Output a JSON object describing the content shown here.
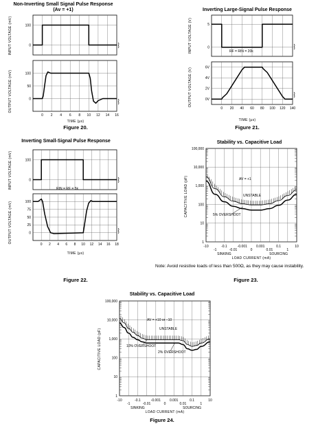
{
  "chart_data": [
    {
      "id": "fig20",
      "type": "line",
      "title": "Non-Inverting Small Signal Pulse Response",
      "subtitle": "(Av = +1)",
      "caption": "Figure 20.",
      "xlabel": "TIME (μs)",
      "ylabel_top": "INPUT VOLTAGE (mV)",
      "ylabel_bottom": "OUTPUT VOLTAGE (mV)",
      "xlim": [
        -2,
        16
      ],
      "xticks": [
        "0",
        "2",
        "4",
        "6",
        "8",
        "10",
        "12",
        "14",
        "16"
      ],
      "top_ylim": [
        -50,
        150
      ],
      "top_yticks": [
        "100",
        "0"
      ],
      "bottom_ylim": [
        -50,
        150
      ],
      "bottom_yticks": [
        "100",
        "50",
        "0"
      ],
      "series": [
        {
          "x": [
            -2,
            0,
            0,
            10,
            10,
            16
          ],
          "y": [
            0,
            0,
            100,
            100,
            0,
            0
          ]
        },
        {
          "x": [
            -2,
            0,
            0.2,
            0.5,
            0.8,
            1.2,
            1.8,
            2.5,
            10,
            10.3,
            10.6,
            11,
            11.5,
            12,
            13,
            16
          ],
          "y": [
            0,
            0,
            10,
            50,
            90,
            105,
            100,
            100,
            100,
            80,
            30,
            -10,
            -18,
            -8,
            0,
            0
          ]
        }
      ]
    },
    {
      "id": "fig21",
      "type": "line",
      "title": "Inverting Large-Signal Pulse Response",
      "caption": "Figure 21.",
      "xlabel": "TIME (μs)",
      "ylabel_top": "INPUT VOLTAGE (V)",
      "ylabel_bottom": "OUTPUT VOLTAGE (V)",
      "annotation": "RF = RIN = 20k",
      "xlim": [
        -20,
        140
      ],
      "xticks": [
        "0",
        "20",
        "40",
        "60",
        "80",
        "100",
        "120",
        "140"
      ],
      "top_ylim": [
        -2,
        7
      ],
      "top_yticks": [
        "5",
        "0"
      ],
      "bottom_ylim": [
        -1,
        7
      ],
      "bottom_yticks": [
        "6V",
        "4V",
        "2V",
        "0V"
      ],
      "series": [
        {
          "x": [
            -20,
            0,
            0,
            80,
            80,
            140
          ],
          "y": [
            5,
            5,
            0,
            0,
            5,
            5
          ]
        },
        {
          "x": [
            -20,
            0,
            2,
            10,
            40,
            45,
            75,
            80,
            82,
            90,
            120,
            125,
            140
          ],
          "y": [
            0,
            0,
            0.3,
            1,
            5.5,
            6,
            6,
            6,
            5.7,
            5,
            0.5,
            0,
            0
          ]
        }
      ]
    },
    {
      "id": "fig22",
      "type": "line",
      "title": "Inverting Small-Signal Pulse Response",
      "caption": "Figure 22.",
      "xlabel": "TIME (μs)",
      "ylabel_top": "INPUT VOLTAGE (mV)",
      "ylabel_bottom": "OUTPUT VOLTAGE (mV)",
      "annotation": "RIN = RF = 5k",
      "xlim": [
        -2,
        18
      ],
      "xticks": [
        "0",
        "2",
        "4",
        "6",
        "8",
        "10",
        "12",
        "14",
        "16",
        "18"
      ],
      "top_ylim": [
        -50,
        150
      ],
      "top_yticks": [
        "100",
        "0"
      ],
      "bottom_ylim": [
        -25,
        125
      ],
      "bottom_yticks": [
        "100",
        "75",
        "50",
        "25",
        "0"
      ],
      "series": [
        {
          "x": [
            -2,
            0,
            0,
            10,
            10,
            18
          ],
          "y": [
            0,
            0,
            100,
            100,
            0,
            0
          ]
        },
        {
          "x": [
            -2,
            -0.8,
            0,
            0.3,
            0.8,
            1.5,
            2.2,
            3,
            10,
            10.3,
            10.8,
            11.3,
            11.8,
            12.3,
            18
          ],
          "y": [
            100,
            100,
            108,
            100,
            60,
            20,
            0,
            -3,
            0,
            25,
            70,
            95,
            103,
            100,
            100
          ]
        }
      ]
    },
    {
      "id": "fig23",
      "type": "line",
      "title": "Stability vs. Capacitive Load",
      "caption": "Figure 23.",
      "xlabel": "LOAD CURRENT (mA)",
      "ylabel": "CAPACITIVE LOAD (pF)",
      "sinking_label": "SINKING",
      "sourcing_label": "SOURCING",
      "xticks_major": [
        "-10",
        "-0.1",
        "-0.001",
        "0.001",
        "0.1",
        "10"
      ],
      "xticks_minor": [
        "-1",
        "-0.01",
        "0",
        "0.01",
        "1"
      ],
      "yticks": [
        "100,000",
        "10,000",
        "1,000",
        "100",
        "10",
        "1"
      ],
      "ylim": [
        1,
        100000
      ],
      "yscale": "log",
      "gain_label": "AV = +1",
      "unstable_label": "UNSTABLE",
      "overshoot_label": "5% OVERSHOOT",
      "series": [
        {
          "x": [
            0,
            1,
            2,
            3,
            4,
            5,
            6,
            7,
            8,
            9,
            10
          ],
          "y": [
            3000,
            700,
            260,
            150,
            110,
            95,
            95,
            110,
            160,
            300,
            600
          ]
        },
        {
          "x": [
            0,
            1,
            2,
            3,
            4,
            5,
            6,
            7,
            8,
            9,
            10
          ],
          "y": [
            1800,
            350,
            140,
            80,
            60,
            50,
            50,
            60,
            90,
            170,
            350
          ]
        }
      ],
      "note": "Note: Avoid resistive loads of less than 500Ω, as they may cause instability."
    },
    {
      "id": "fig24",
      "type": "line",
      "title": "Stability vs. Capacitive Load",
      "caption": "Figure 24.",
      "xlabel": "LOAD CURRENT (mA)",
      "ylabel": "CAPACITIVE LOAD (pF)",
      "sinking_label": "SINKING",
      "sourcing_label": "SOURCING",
      "xticks_major": [
        "-10",
        "-0.1",
        "-0.001",
        "0.001",
        "0.1",
        "10"
      ],
      "xticks_minor": [
        "-1",
        "-0.01",
        "0",
        "0.01",
        "1"
      ],
      "yticks": [
        "100,000",
        "10,000",
        "1,000",
        "100",
        "10",
        "1"
      ],
      "ylim": [
        1,
        100000
      ],
      "yscale": "log",
      "gain_label": "AV = +10 or −10",
      "unstable_label": "UNSTABLE",
      "overshoot_label_a": "10% OVERSHOOT",
      "overshoot_label_b": "2% OVERSHOOT",
      "series": [
        {
          "x": [
            0,
            0.5,
            1,
            1.5,
            2,
            2.5,
            3,
            5,
            6.5,
            7,
            7.5,
            8,
            8.5,
            9,
            10
          ],
          "y": [
            12000,
            7000,
            3500,
            2200,
            1500,
            1100,
            900,
            900,
            900,
            800,
            500,
            400,
            450,
            600,
            1000
          ]
        },
        {
          "x": [
            0,
            0.5,
            1,
            1.5,
            2,
            2.5,
            3,
            5,
            6.5,
            7,
            7.5,
            8,
            8.5,
            9,
            10
          ],
          "y": [
            7000,
            4000,
            2000,
            1200,
            900,
            700,
            600,
            600,
            600,
            500,
            300,
            250,
            280,
            400,
            700
          ]
        }
      ]
    }
  ]
}
